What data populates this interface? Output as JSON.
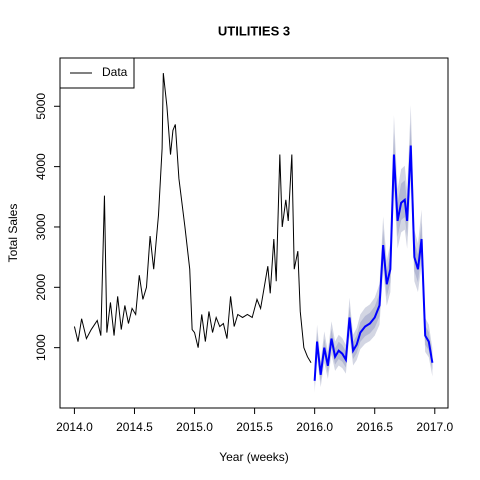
{
  "chart_data": {
    "type": "line",
    "title": "UTILITIES 3",
    "xlabel": "Year (weeks)",
    "ylabel": "Total Sales",
    "xlim": [
      2013.88,
      2017.11
    ],
    "ylim": [
      0,
      5800
    ],
    "xticks": [
      {
        "value": 2014,
        "label": "2014.0"
      },
      {
        "value": 2014.5,
        "label": "2014.5"
      },
      {
        "value": 2015,
        "label": "2015.0"
      },
      {
        "value": 2015.5,
        "label": "2015.5"
      },
      {
        "value": 2016,
        "label": "2016.0"
      },
      {
        "value": 2016.5,
        "label": "2016.5"
      },
      {
        "value": 2017,
        "label": "2017.0"
      }
    ],
    "yticks": [
      1000,
      2000,
      3000,
      4000,
      5000
    ],
    "legend": "top-left",
    "series": [
      {
        "name": "Data",
        "color": "#000000",
        "x": [
          2014.0,
          2014.03,
          2014.06,
          2014.1,
          2014.14,
          2014.19,
          2014.22,
          2014.25,
          2014.27,
          2014.3,
          2014.33,
          2014.36,
          2014.39,
          2014.42,
          2014.45,
          2014.48,
          2014.51,
          2014.54,
          2014.57,
          2014.6,
          2014.63,
          2014.66,
          2014.7,
          2014.73,
          2014.74,
          2014.77,
          2014.8,
          2014.82,
          2014.84,
          2014.87,
          2014.92,
          2014.96,
          2014.98,
          2015.0,
          2015.03,
          2015.06,
          2015.09,
          2015.12,
          2015.15,
          2015.18,
          2015.21,
          2015.24,
          2015.27,
          2015.3,
          2015.33,
          2015.36,
          2015.4,
          2015.44,
          2015.48,
          2015.52,
          2015.55,
          2015.58,
          2015.61,
          2015.63,
          2015.66,
          2015.68,
          2015.71,
          2015.73,
          2015.76,
          2015.78,
          2015.81,
          2015.83,
          2015.86,
          2015.88,
          2015.91,
          2015.94,
          2015.97
        ],
        "values": [
          1350,
          1100,
          1480,
          1150,
          1300,
          1450,
          1200,
          3520,
          1250,
          1750,
          1200,
          1850,
          1300,
          1700,
          1400,
          1650,
          1550,
          2200,
          1800,
          2000,
          2850,
          2300,
          3200,
          4300,
          5550,
          5000,
          4200,
          4600,
          4700,
          3800,
          3000,
          2300,
          1300,
          1250,
          1000,
          1550,
          1100,
          1600,
          1250,
          1500,
          1350,
          1400,
          1150,
          1850,
          1350,
          1550,
          1500,
          1550,
          1500,
          1800,
          1650,
          2000,
          2350,
          1900,
          2800,
          2100,
          4200,
          3000,
          3450,
          3100,
          4200,
          2300,
          2600,
          1600,
          1000,
          850,
          750
        ]
      }
    ],
    "forecast": {
      "color": "#0000ff",
      "band80_color": "#b3b8d3",
      "band95_color": "#d3d6e3",
      "x": [
        2016.0,
        2016.02,
        2016.05,
        2016.08,
        2016.11,
        2016.14,
        2016.17,
        2016.2,
        2016.23,
        2016.26,
        2016.29,
        2016.32,
        2016.35,
        2016.38,
        2016.42,
        2016.46,
        2016.5,
        2016.54,
        2016.57,
        2016.6,
        2016.63,
        2016.66,
        2016.69,
        2016.72,
        2016.75,
        2016.77,
        2016.8,
        2016.83,
        2016.86,
        2016.89,
        2016.92,
        2016.95,
        2016.98
      ],
      "values": [
        450,
        1100,
        550,
        1000,
        700,
        1150,
        850,
        950,
        900,
        800,
        1500,
        950,
        1050,
        1250,
        1350,
        1400,
        1500,
        1700,
        2700,
        2050,
        2300,
        4200,
        3100,
        3400,
        3450,
        3100,
        4350,
        2500,
        2300,
        2800,
        1200,
        1100,
        750
      ],
      "lo95": [
        255,
        840,
        345,
        750,
        480,
        885,
        615,
        705,
        660,
        570,
        1200,
        705,
        795,
        975,
        1065,
        1110,
        1200,
        1380,
        2280,
        1695,
        1920,
        3630,
        2640,
        2910,
        2955,
        2640,
        3765,
        2100,
        1920,
        2370,
        930,
        840,
        525
      ],
      "hi95": [
        654,
        1382,
        766,
        1270,
        934,
        1438,
        1102,
        1214,
        1158,
        1046,
        1830,
        1214,
        1326,
        1550,
        1662,
        1718,
        1830,
        2054,
        3174,
        2446,
        2726,
        4854,
        3622,
        3958,
        4014,
        3622,
        5022,
        2950,
        2726,
        3286,
        1494,
        1382,
        990
      ],
      "lo80": [
        343,
        954,
        437,
        860,
        578,
        1001,
        719,
        813,
        766,
        672,
        1330,
        813,
        907,
        1095,
        1189,
        1236,
        1330,
        1518,
        2458,
        1847,
        2082,
        3868,
        2834,
        3116,
        3163,
        2834,
        4009,
        2270,
        2082,
        2552,
        1048,
        954,
        625
      ],
      "hi80": [
        562,
        1257,
        669,
        1150,
        829,
        1311,
        990,
        1097,
        1043,
        936,
        1685,
        1097,
        1204,
        1418,
        1525,
        1578,
        1685,
        1899,
        2969,
        2274,
        2541,
        4574,
        3397,
        3718,
        3772,
        3397,
        4735,
        2755,
        2541,
        3076,
        1364,
        1257,
        883
      ]
    }
  }
}
